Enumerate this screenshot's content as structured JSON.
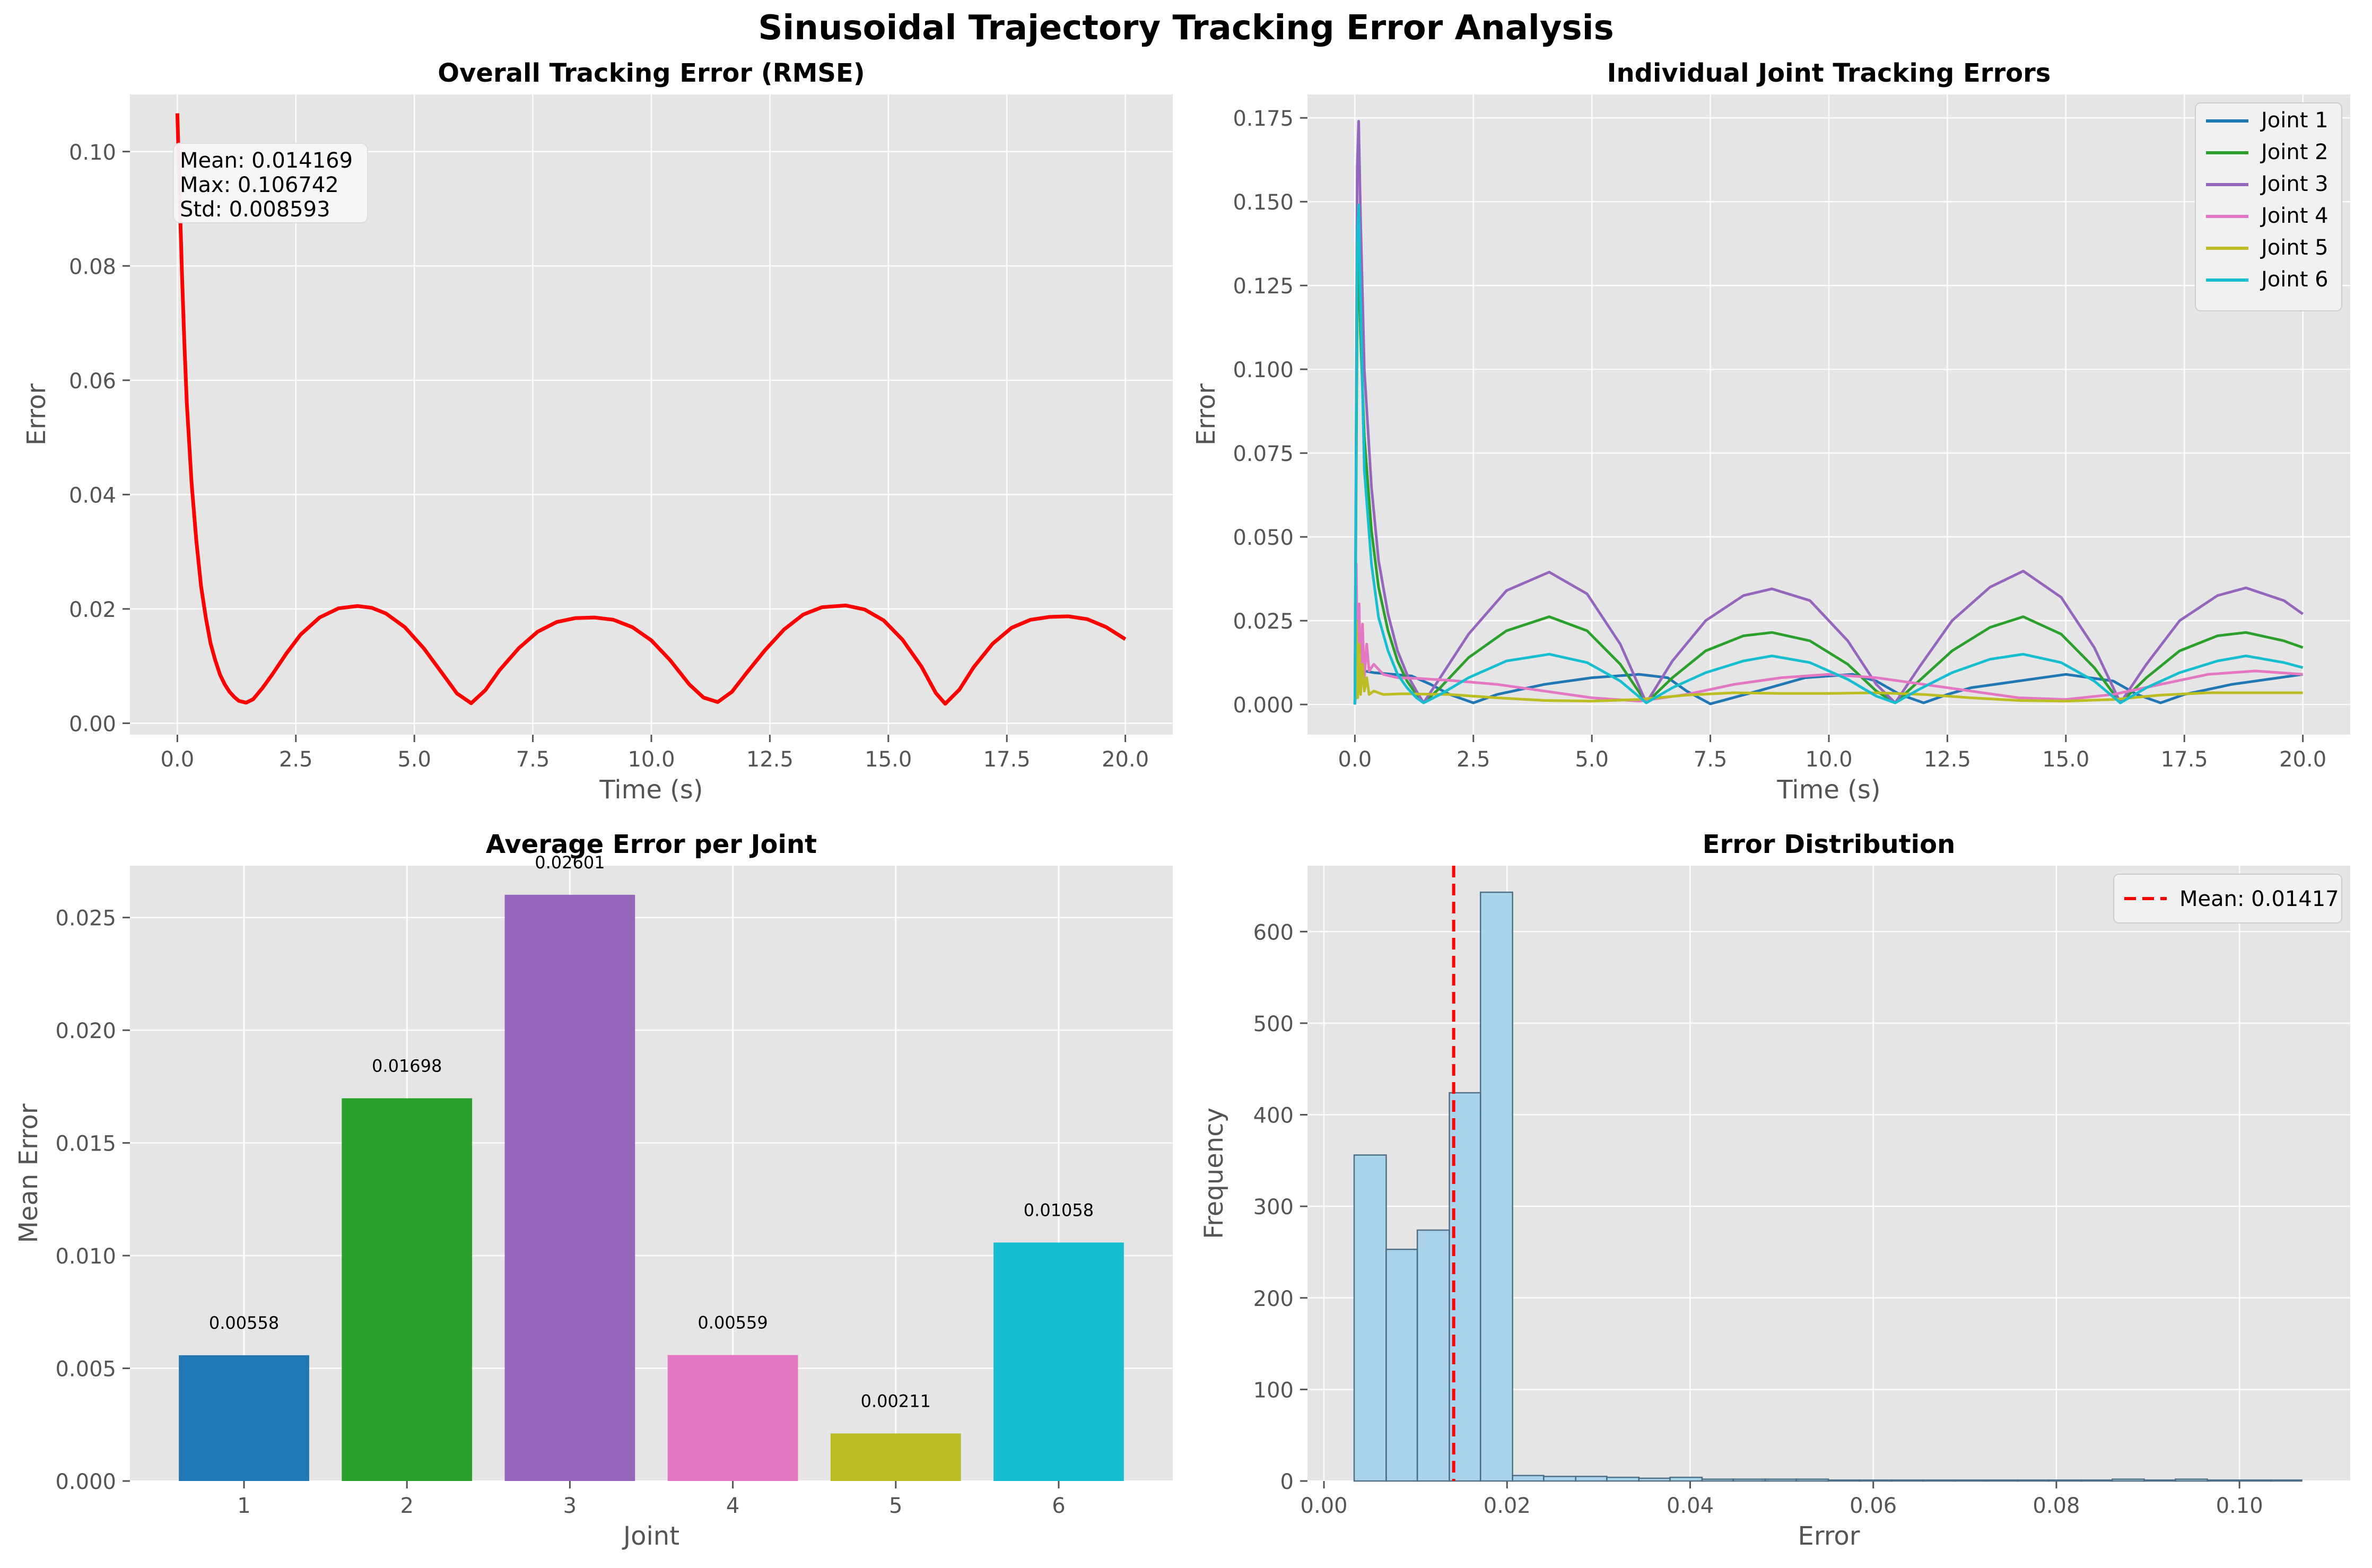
{
  "suptitle": "Sinusoidal Trajectory Tracking Error Analysis",
  "colors": {
    "panel_bg": "#e5e5e5",
    "grid": "#ffffff",
    "rmse_line": "#ff0000",
    "hist_fill": "#a6d4ec",
    "hist_edge": "#4a6a80",
    "mean_line": "#ff0000",
    "joints": [
      "#1f77b4",
      "#2ca02c",
      "#9467bd",
      "#e377c2",
      "#bcbd22",
      "#17becf"
    ]
  },
  "chart_data": [
    {
      "type": "line",
      "title": "Overall Tracking Error (RMSE)",
      "xlabel": "Time (s)",
      "ylabel": "Error",
      "xlim": [
        -1.0,
        21.0
      ],
      "ylim": [
        -0.002,
        0.11
      ],
      "xticks": [
        0.0,
        2.5,
        5.0,
        7.5,
        10.0,
        12.5,
        15.0,
        17.5,
        20.0
      ],
      "yticks": [
        0.0,
        0.02,
        0.04,
        0.06,
        0.08,
        0.1
      ],
      "xtick_labels": [
        "0.0",
        "2.5",
        "5.0",
        "7.5",
        "10.0",
        "12.5",
        "15.0",
        "17.5",
        "20.0"
      ],
      "ytick_labels": [
        "0.00",
        "0.02",
        "0.04",
        "0.06",
        "0.08",
        "0.10"
      ],
      "grid": true,
      "series": [
        {
          "color": "#ff0000",
          "x": [
            0,
            0.05,
            0.1,
            0.15,
            0.2,
            0.3,
            0.4,
            0.5,
            0.6,
            0.7,
            0.8,
            0.9,
            1.0,
            1.1,
            1.2,
            1.3,
            1.45,
            1.6,
            1.8,
            2.0,
            2.3,
            2.6,
            3.0,
            3.4,
            3.8,
            4.1,
            4.4,
            4.8,
            5.2,
            5.6,
            5.9,
            6.2,
            6.5,
            6.8,
            7.2,
            7.6,
            8.0,
            8.4,
            8.8,
            9.2,
            9.6,
            10.0,
            10.4,
            10.8,
            11.1,
            11.4,
            11.7,
            12.0,
            12.4,
            12.8,
            13.2,
            13.6,
            14.1,
            14.5,
            14.9,
            15.3,
            15.7,
            16.0,
            16.2,
            16.5,
            16.8,
            17.2,
            17.6,
            18.0,
            18.4,
            18.8,
            19.2,
            19.6,
            20.0
          ],
          "y": [
            0.1067,
            0.092,
            0.078,
            0.066,
            0.056,
            0.042,
            0.032,
            0.024,
            0.0185,
            0.014,
            0.011,
            0.0085,
            0.0068,
            0.0055,
            0.0046,
            0.0039,
            0.0036,
            0.0042,
            0.0062,
            0.0085,
            0.0122,
            0.0155,
            0.0185,
            0.0201,
            0.0205,
            0.0202,
            0.0192,
            0.0168,
            0.0131,
            0.0086,
            0.0052,
            0.0035,
            0.0058,
            0.0093,
            0.0131,
            0.016,
            0.0177,
            0.0184,
            0.0185,
            0.0181,
            0.0168,
            0.0145,
            0.011,
            0.0068,
            0.0045,
            0.0037,
            0.0055,
            0.0087,
            0.0128,
            0.0164,
            0.019,
            0.0203,
            0.0206,
            0.0199,
            0.018,
            0.0146,
            0.0099,
            0.0053,
            0.0034,
            0.0059,
            0.0098,
            0.0139,
            0.0167,
            0.0181,
            0.0186,
            0.0187,
            0.0182,
            0.0168,
            0.0147
          ]
        }
      ],
      "annotation": [
        "Mean: 0.014169",
        "Max: 0.106742",
        "Std: 0.008593"
      ]
    },
    {
      "type": "line",
      "title": "Individual Joint Tracking Errors",
      "xlabel": "Time (s)",
      "ylabel": "Error",
      "xlim": [
        -1.0,
        21.0
      ],
      "ylim": [
        -0.009,
        0.182
      ],
      "xticks": [
        0.0,
        2.5,
        5.0,
        7.5,
        10.0,
        12.5,
        15.0,
        17.5,
        20.0
      ],
      "yticks": [
        0.0,
        0.025,
        0.05,
        0.075,
        0.1,
        0.125,
        0.15,
        0.175
      ],
      "xtick_labels": [
        "0.0",
        "2.5",
        "5.0",
        "7.5",
        "10.0",
        "12.5",
        "15.0",
        "17.5",
        "20.0"
      ],
      "ytick_labels": [
        "0.000",
        "0.025",
        "0.050",
        "0.075",
        "0.100",
        "0.125",
        "0.150",
        "0.175"
      ],
      "grid": true,
      "legend_position": "top-right",
      "series": [
        {
          "name": "Joint 1",
          "color": "#1f77b4",
          "x": [
            0,
            0.05,
            0.1,
            0.2,
            0.4,
            0.8,
            1.2,
            1.6,
            2.0,
            2.5,
            3.0,
            4.0,
            5.0,
            6.0,
            6.6,
            7.0,
            7.5,
            8.5,
            9.5,
            10.5,
            11.0,
            11.5,
            12.0,
            12.5,
            13.0,
            14.0,
            15.0,
            16.0,
            16.5,
            17.0,
            17.5,
            18.5,
            19.5,
            20.0
          ],
          "y": [
            0.0,
            0.012,
            0.011,
            0.01,
            0.0095,
            0.009,
            0.0085,
            0.006,
            0.003,
            0.0005,
            0.003,
            0.006,
            0.008,
            0.009,
            0.008,
            0.004,
            0.0002,
            0.004,
            0.008,
            0.009,
            0.007,
            0.003,
            0.0005,
            0.003,
            0.005,
            0.007,
            0.009,
            0.007,
            0.003,
            0.0005,
            0.003,
            0.006,
            0.008,
            0.009
          ]
        },
        {
          "name": "Joint 2",
          "color": "#2ca02c",
          "x": [
            0,
            0.05,
            0.08,
            0.12,
            0.2,
            0.35,
            0.5,
            0.7,
            0.9,
            1.1,
            1.3,
            1.45,
            1.8,
            2.4,
            3.2,
            4.1,
            4.9,
            5.6,
            6.15,
            6.7,
            7.4,
            8.2,
            8.8,
            9.6,
            10.4,
            11.0,
            11.4,
            11.9,
            12.6,
            13.4,
            14.1,
            14.9,
            15.6,
            16.15,
            16.7,
            17.4,
            18.2,
            18.8,
            19.6,
            20.0
          ],
          "y": [
            0.0,
            0.12,
            0.132,
            0.11,
            0.08,
            0.052,
            0.035,
            0.022,
            0.013,
            0.007,
            0.003,
            0.0005,
            0.005,
            0.014,
            0.022,
            0.0262,
            0.022,
            0.012,
            0.0005,
            0.008,
            0.016,
            0.0205,
            0.0215,
            0.019,
            0.012,
            0.004,
            0.0005,
            0.007,
            0.016,
            0.023,
            0.0262,
            0.021,
            0.011,
            0.0005,
            0.008,
            0.016,
            0.0205,
            0.0215,
            0.019,
            0.017
          ]
        },
        {
          "name": "Joint 3",
          "color": "#9467bd",
          "x": [
            0,
            0.05,
            0.08,
            0.12,
            0.2,
            0.35,
            0.5,
            0.7,
            0.9,
            1.1,
            1.3,
            1.45,
            1.8,
            2.4,
            3.2,
            4.1,
            4.9,
            5.6,
            6.15,
            6.7,
            7.4,
            8.2,
            8.8,
            9.6,
            10.4,
            11.0,
            11.4,
            11.9,
            12.6,
            13.4,
            14.1,
            14.9,
            15.6,
            16.15,
            16.7,
            17.4,
            18.2,
            18.8,
            19.6,
            20.0
          ],
          "y": [
            0.0,
            0.16,
            0.174,
            0.145,
            0.1,
            0.065,
            0.043,
            0.027,
            0.016,
            0.009,
            0.004,
            0.0005,
            0.008,
            0.021,
            0.034,
            0.0395,
            0.033,
            0.018,
            0.0005,
            0.013,
            0.025,
            0.0325,
            0.0345,
            0.031,
            0.019,
            0.006,
            0.0005,
            0.011,
            0.025,
            0.035,
            0.0398,
            0.032,
            0.017,
            0.0005,
            0.012,
            0.025,
            0.0325,
            0.0348,
            0.031,
            0.027
          ]
        },
        {
          "name": "Joint 4",
          "color": "#e377c2",
          "x": [
            0,
            0.03,
            0.06,
            0.09,
            0.12,
            0.16,
            0.2,
            0.25,
            0.3,
            0.4,
            0.6,
            0.9,
            1.3,
            2.0,
            3.0,
            4.0,
            5.0,
            6.0,
            7.0,
            8.0,
            9.0,
            10.0,
            11.0,
            12.0,
            13.0,
            14.0,
            15.0,
            16.0,
            17.0,
            18.0,
            19.0,
            20.0
          ],
          "y": [
            0.0,
            0.042,
            0.004,
            0.03,
            0.006,
            0.024,
            0.008,
            0.018,
            0.01,
            0.012,
            0.009,
            0.008,
            0.0078,
            0.0072,
            0.006,
            0.004,
            0.002,
            0.001,
            0.003,
            0.006,
            0.008,
            0.009,
            0.008,
            0.006,
            0.004,
            0.002,
            0.0015,
            0.003,
            0.006,
            0.009,
            0.01,
            0.009
          ]
        },
        {
          "name": "Joint 5",
          "color": "#bcbd22",
          "x": [
            0,
            0.03,
            0.06,
            0.09,
            0.12,
            0.16,
            0.2,
            0.25,
            0.3,
            0.4,
            0.6,
            1.0,
            2.0,
            3.0,
            4.0,
            5.0,
            6.0,
            7.0,
            8.0,
            9.0,
            10.0,
            11.0,
            12.0,
            13.0,
            14.0,
            15.0,
            16.0,
            17.0,
            18.0,
            19.0,
            20.0
          ],
          "y": [
            0.0,
            0.025,
            0.002,
            0.018,
            0.003,
            0.012,
            0.004,
            0.008,
            0.003,
            0.004,
            0.003,
            0.0032,
            0.003,
            0.002,
            0.0012,
            0.001,
            0.0015,
            0.0028,
            0.0035,
            0.0033,
            0.0033,
            0.0035,
            0.003,
            0.002,
            0.0012,
            0.001,
            0.0015,
            0.0028,
            0.0035,
            0.0035,
            0.0035
          ]
        },
        {
          "name": "Joint 6",
          "color": "#17becf",
          "x": [
            0,
            0.05,
            0.08,
            0.12,
            0.2,
            0.35,
            0.5,
            0.7,
            0.9,
            1.1,
            1.3,
            1.45,
            1.8,
            2.4,
            3.2,
            4.1,
            4.9,
            5.6,
            6.15,
            6.7,
            7.4,
            8.2,
            8.8,
            9.6,
            10.4,
            11.0,
            11.4,
            11.9,
            12.6,
            13.4,
            14.1,
            14.9,
            15.6,
            16.15,
            16.7,
            17.4,
            18.2,
            18.8,
            19.6,
            20.0
          ],
          "y": [
            0.0,
            0.14,
            0.149,
            0.12,
            0.07,
            0.042,
            0.026,
            0.016,
            0.009,
            0.005,
            0.002,
            0.0005,
            0.003,
            0.008,
            0.013,
            0.015,
            0.0125,
            0.007,
            0.0005,
            0.005,
            0.0095,
            0.013,
            0.0145,
            0.0125,
            0.0075,
            0.0025,
            0.0005,
            0.0045,
            0.0095,
            0.0135,
            0.015,
            0.0125,
            0.007,
            0.0005,
            0.005,
            0.0095,
            0.013,
            0.0145,
            0.0125,
            0.011
          ]
        }
      ]
    },
    {
      "type": "bar",
      "title": "Average Error per Joint",
      "xlabel": "Joint",
      "ylabel": "Mean Error",
      "ylim": [
        0,
        0.0273
      ],
      "yticks": [
        0.0,
        0.005,
        0.01,
        0.015,
        0.02,
        0.025
      ],
      "ytick_labels": [
        "0.000",
        "0.005",
        "0.010",
        "0.015",
        "0.020",
        "0.025"
      ],
      "grid": true,
      "categories": [
        "1",
        "2",
        "3",
        "4",
        "5",
        "6"
      ],
      "values": [
        0.00558,
        0.01698,
        0.02601,
        0.00559,
        0.00211,
        0.01058
      ],
      "value_labels": [
        "0.00558",
        "0.01698",
        "0.02601",
        "0.00559",
        "0.00211",
        "0.01058"
      ],
      "colors": [
        "#1f77b4",
        "#2ca02c",
        "#9467bd",
        "#e377c2",
        "#bcbd22",
        "#17becf"
      ]
    },
    {
      "type": "bar",
      "title": "Error Distribution",
      "xlabel": "Error",
      "ylabel": "Frequency",
      "xlim": [
        -0.0018,
        0.1121
      ],
      "ylim": [
        0,
        672
      ],
      "xticks": [
        0.0,
        0.02,
        0.04,
        0.06,
        0.08,
        0.1
      ],
      "yticks": [
        0,
        100,
        200,
        300,
        400,
        500,
        600
      ],
      "xtick_labels": [
        "0.00",
        "0.02",
        "0.04",
        "0.06",
        "0.08",
        "0.10"
      ],
      "ytick_labels": [
        "0",
        "100",
        "200",
        "300",
        "400",
        "500",
        "600"
      ],
      "grid": true,
      "legend_position": "top-right",
      "bin_edges": [
        0.0033,
        0.0068,
        0.0102,
        0.0137,
        0.0171,
        0.0206,
        0.024,
        0.0275,
        0.0309,
        0.0344,
        0.0378,
        0.0413,
        0.0447,
        0.0482,
        0.0516,
        0.0551,
        0.0585,
        0.062,
        0.0654,
        0.0689,
        0.0723,
        0.0758,
        0.0792,
        0.0827,
        0.0861,
        0.0896,
        0.093,
        0.0965,
        0.0999,
        0.1034,
        0.1068
      ],
      "counts": [
        356,
        253,
        274,
        424,
        643,
        6,
        5,
        5,
        4,
        3,
        4,
        2,
        2,
        2,
        2,
        1,
        1,
        1,
        1,
        1,
        1,
        1,
        1,
        1,
        2,
        1,
        2,
        1,
        1,
        1
      ],
      "mean": 0.01417,
      "mean_label": "Mean: 0.01417"
    }
  ]
}
